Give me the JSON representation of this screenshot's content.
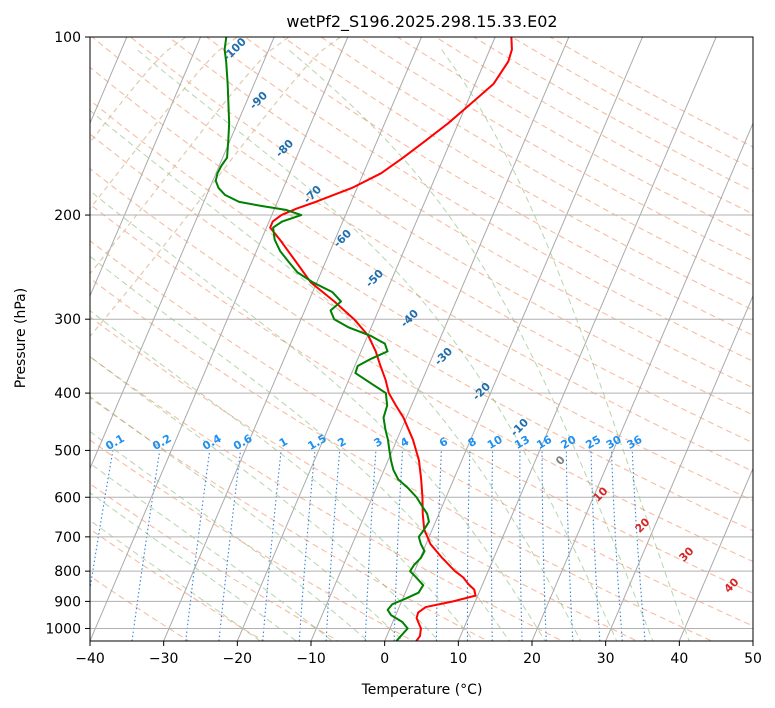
{
  "chart_data": {
    "type": "line",
    "title": "wetPf2_S196.2025.298.15.33.E02",
    "xlabel": "Temperature (°C)",
    "ylabel": "Pressure (hPa)",
    "xlim": [
      -40,
      50
    ],
    "ylim": [
      1050,
      100
    ],
    "y_scale": "log",
    "grid": true,
    "x_ticks": [
      -40,
      -30,
      -20,
      -10,
      0,
      10,
      20,
      30,
      40,
      50
    ],
    "y_ticks": [
      100,
      200,
      300,
      400,
      500,
      600,
      700,
      800,
      900,
      1000
    ],
    "series": [
      {
        "color": "#ff0000",
        "points": [
          [
            1050,
            4.3
          ],
          [
            1030,
            4.5
          ],
          [
            1000,
            4.2
          ],
          [
            980,
            3.6
          ],
          [
            960,
            3.0
          ],
          [
            940,
            2.9
          ],
          [
            920,
            3.6
          ],
          [
            900,
            7.0
          ],
          [
            880,
            9.7
          ],
          [
            860,
            9.2
          ],
          [
            840,
            8.0
          ],
          [
            820,
            7.0
          ],
          [
            800,
            5.5
          ],
          [
            760,
            3.0
          ],
          [
            720,
            0.6
          ],
          [
            680,
            -1.1
          ],
          [
            640,
            -2.2
          ],
          [
            600,
            -3.2
          ],
          [
            560,
            -4.4
          ],
          [
            520,
            -5.8
          ],
          [
            480,
            -7.8
          ],
          [
            440,
            -10.4
          ],
          [
            420,
            -12.1
          ],
          [
            400,
            -13.8
          ],
          [
            380,
            -15.0
          ],
          [
            360,
            -16.5
          ],
          [
            340,
            -18.0
          ],
          [
            320,
            -19.9
          ],
          [
            300,
            -22.8
          ],
          [
            280,
            -26.5
          ],
          [
            260,
            -30.8
          ],
          [
            240,
            -34.0
          ],
          [
            220,
            -37.5
          ],
          [
            210,
            -39.5
          ],
          [
            205,
            -39.5
          ],
          [
            200,
            -38.7
          ],
          [
            195,
            -37.0
          ],
          [
            190,
            -34.8
          ],
          [
            180,
            -30.7
          ],
          [
            170,
            -27.6
          ],
          [
            160,
            -25.5
          ],
          [
            150,
            -23.5
          ],
          [
            140,
            -21.4
          ],
          [
            130,
            -19.5
          ],
          [
            120,
            -17.5
          ],
          [
            110,
            -16.8
          ],
          [
            105,
            -17.0
          ],
          [
            100,
            -17.8
          ]
        ]
      },
      {
        "color": "#008000",
        "points": [
          [
            1050,
            1.6
          ],
          [
            1030,
            1.9
          ],
          [
            1000,
            2.4
          ],
          [
            975,
            1.3
          ],
          [
            950,
            -0.6
          ],
          [
            930,
            -1.4
          ],
          [
            910,
            -1.1
          ],
          [
            890,
            0.4
          ],
          [
            870,
            1.8
          ],
          [
            845,
            2.0
          ],
          [
            820,
            0.6
          ],
          [
            800,
            -0.6
          ],
          [
            780,
            -0.4
          ],
          [
            760,
            0.1
          ],
          [
            740,
            0.2
          ],
          [
            720,
            -0.7
          ],
          [
            700,
            -1.4
          ],
          [
            680,
            -1.1
          ],
          [
            660,
            -0.9
          ],
          [
            640,
            -1.6
          ],
          [
            620,
            -2.8
          ],
          [
            600,
            -4.0
          ],
          [
            580,
            -5.6
          ],
          [
            560,
            -7.5
          ],
          [
            540,
            -8.7
          ],
          [
            520,
            -9.6
          ],
          [
            500,
            -10.4
          ],
          [
            480,
            -11.2
          ],
          [
            460,
            -12.2
          ],
          [
            440,
            -13.1
          ],
          [
            420,
            -13.3
          ],
          [
            400,
            -14.2
          ],
          [
            385,
            -16.8
          ],
          [
            370,
            -19.5
          ],
          [
            360,
            -19.6
          ],
          [
            350,
            -18.2
          ],
          [
            340,
            -16.4
          ],
          [
            330,
            -17.2
          ],
          [
            320,
            -19.6
          ],
          [
            310,
            -23.0
          ],
          [
            300,
            -25.5
          ],
          [
            290,
            -26.5
          ],
          [
            280,
            -25.6
          ],
          [
            270,
            -27.3
          ],
          [
            260,
            -30.5
          ],
          [
            250,
            -33.2
          ],
          [
            240,
            -35.0
          ],
          [
            230,
            -36.8
          ],
          [
            220,
            -38.2
          ],
          [
            210,
            -39.1
          ],
          [
            205,
            -38.2
          ],
          [
            200,
            -36.0
          ],
          [
            196,
            -38.4
          ],
          [
            193,
            -42.0
          ],
          [
            190,
            -45.2
          ],
          [
            185,
            -47.5
          ],
          [
            180,
            -48.8
          ],
          [
            175,
            -49.6
          ],
          [
            170,
            -49.8
          ],
          [
            165,
            -49.7
          ],
          [
            160,
            -49.4
          ],
          [
            150,
            -50.2
          ],
          [
            140,
            -51.1
          ],
          [
            130,
            -52.3
          ],
          [
            120,
            -53.6
          ],
          [
            110,
            -55.1
          ],
          [
            105,
            -56.0
          ],
          [
            100,
            -56.5
          ]
        ]
      }
    ],
    "dry_adiabats_labels": [
      "-100",
      "-90",
      "-80",
      "-70",
      "-60",
      "-50",
      "-40",
      "-30",
      "-20",
      "-10",
      "0",
      "10",
      "20",
      "30",
      "40"
    ],
    "mixing_ratio_labels": [
      "0.1",
      "0.2",
      "0.4",
      "0.6",
      "1",
      "1.5",
      "2",
      "3",
      "4",
      "6",
      "8",
      "10",
      "13",
      "16",
      "20",
      "25",
      "30",
      "36"
    ]
  }
}
